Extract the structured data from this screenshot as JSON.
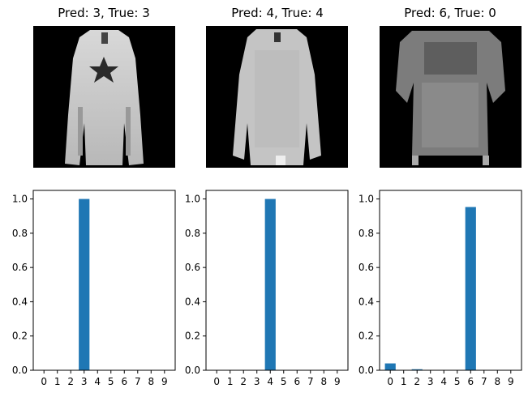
{
  "figure": {
    "panels": [
      {
        "title": "Pred: 3, True: 3",
        "image_icon": "dress-with-star-icon"
      },
      {
        "title": "Pred: 4, True: 4",
        "image_icon": "long-coat-icon"
      },
      {
        "title": "Pred: 6, True: 0",
        "image_icon": "tshirt-icon"
      }
    ]
  },
  "chart_data": [
    {
      "type": "bar",
      "categories": [
        "0",
        "1",
        "2",
        "3",
        "4",
        "5",
        "6",
        "7",
        "8",
        "9"
      ],
      "values": [
        0,
        0,
        0,
        1.0,
        0,
        0,
        0,
        0,
        0,
        0
      ],
      "ylim": [
        0,
        1.05
      ],
      "yticks": [
        "0.0",
        "0.2",
        "0.4",
        "0.6",
        "0.8",
        "1.0"
      ],
      "color": "#1f77b4"
    },
    {
      "type": "bar",
      "categories": [
        "0",
        "1",
        "2",
        "3",
        "4",
        "5",
        "6",
        "7",
        "8",
        "9"
      ],
      "values": [
        0,
        0,
        0,
        0,
        1.0,
        0,
        0,
        0,
        0,
        0
      ],
      "ylim": [
        0,
        1.05
      ],
      "yticks": [
        "0.0",
        "0.2",
        "0.4",
        "0.6",
        "0.8",
        "1.0"
      ],
      "color": "#1f77b4"
    },
    {
      "type": "bar",
      "categories": [
        "0",
        "1",
        "2",
        "3",
        "4",
        "5",
        "6",
        "7",
        "8",
        "9"
      ],
      "values": [
        0.04,
        0,
        0.006,
        0,
        0,
        0,
        0.953,
        0,
        0,
        0
      ],
      "ylim": [
        0,
        1.05
      ],
      "yticks": [
        "0.0",
        "0.2",
        "0.4",
        "0.6",
        "0.8",
        "1.0"
      ],
      "color": "#1f77b4"
    }
  ]
}
